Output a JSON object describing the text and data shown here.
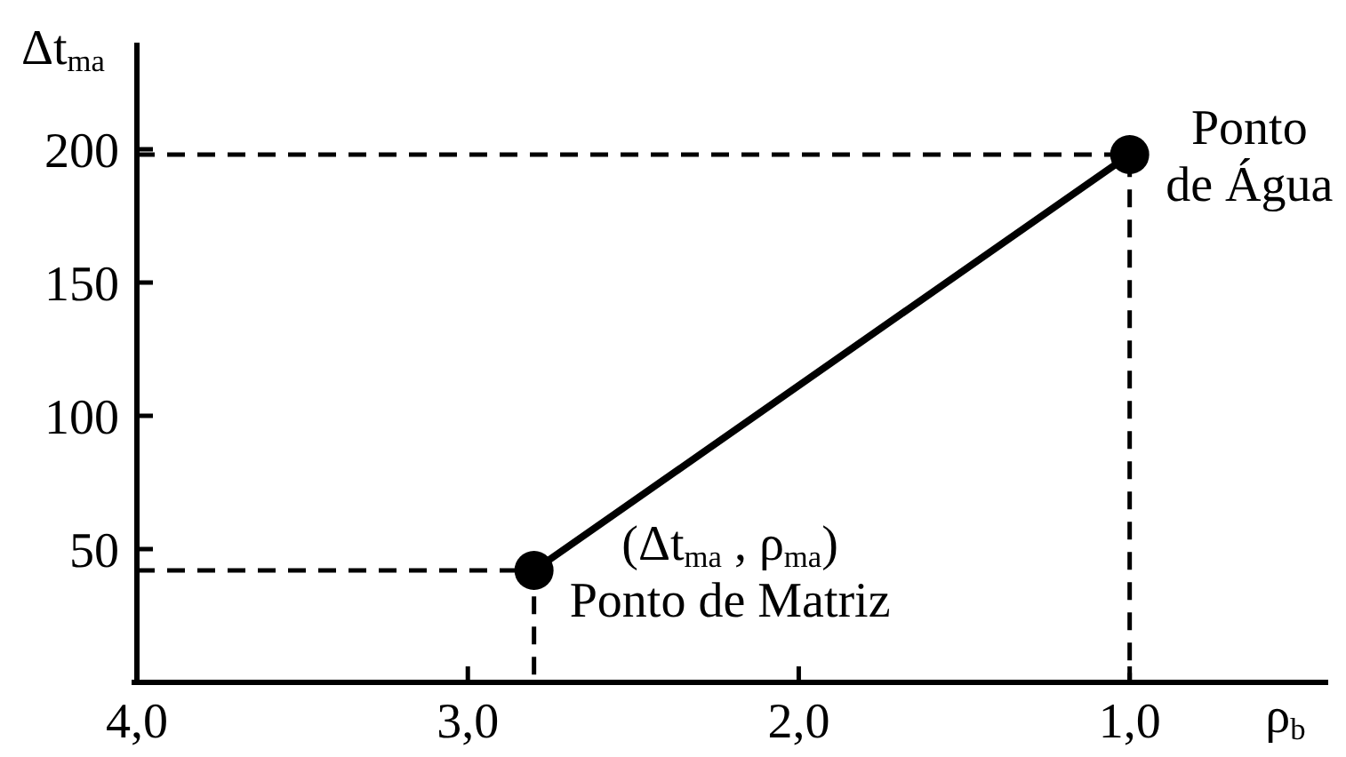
{
  "chart_data": {
    "type": "line",
    "xlabel": "ρ$_{b}$",
    "ylabel": "Δt$_{ma}$",
    "xlim": [
      4.0,
      0.4
    ],
    "xticks": [
      {
        "value": 4,
        "label": "4,0"
      },
      {
        "value": 3,
        "label": "3,0"
      },
      {
        "value": 2,
        "label": "2,0"
      },
      {
        "value": 1,
        "label": "1,0"
      }
    ],
    "ylim": [
      0,
      240
    ],
    "yticks": [
      50,
      100,
      150,
      200
    ],
    "series": [
      {
        "x": [
          2.8,
          1.0
        ],
        "values": [
          42,
          198
        ],
        "color": "#000000",
        "marker": "circle",
        "line_style": "solid"
      },
      {
        "x": [
          4.0,
          2.8,
          2.8
        ],
        "values": [
          42,
          42,
          0
        ],
        "color": "#000000",
        "marker": "none",
        "line_style": "dashed"
      },
      {
        "x": [
          4.0,
          1.0,
          1.0
        ],
        "values": [
          198,
          198,
          0
        ],
        "color": "#000000",
        "marker": "none",
        "line_style": "dashed"
      }
    ],
    "annotations": [
      {
        "text": "(Δt$_{ma}$ , ρ$_{ma}$)\nPonto de Matriz",
        "x": 2.8,
        "y": 42
      },
      {
        "text": "Ponto\nde Água",
        "x": 1.0,
        "y": 198
      }
    ]
  }
}
